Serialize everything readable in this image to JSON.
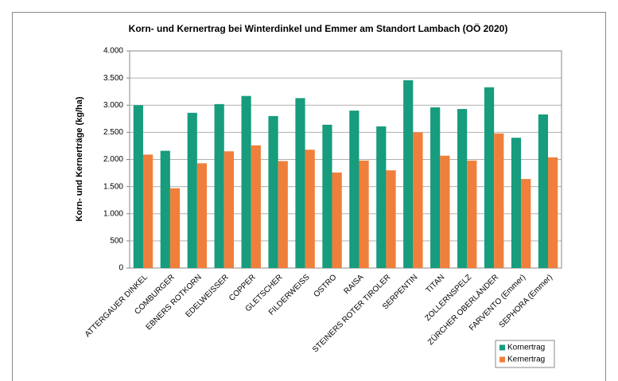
{
  "chart_data": {
    "type": "bar",
    "title": "Korn- und Kernertrag bei Winterdinkel und Emmer am Standort Lambach (OÖ 2020)",
    "y_label": "Korn- und Kernerträge (kg/ha)",
    "categories": [
      "ATTERGAUER DINKEL",
      "COMBURGER",
      "EBNERS ROTKORN",
      "EDELWEISSER",
      "COPPER",
      "GLETSCHER",
      "FILDERWEISS",
      "OSTRO",
      "RAISA",
      "STEINERS ROTER TIROLER",
      "SERPENTIN",
      "TITAN",
      "ZOLLERNSPELZ",
      "ZÜRCHER OBERLÄNDER",
      "FARVENTO (Emmer)",
      "SEPHORA (Emmer)"
    ],
    "series": [
      {
        "name": "Kornertrag",
        "color": "#179c7d",
        "values": [
          3000,
          2160,
          2860,
          3020,
          3170,
          2800,
          3130,
          2640,
          2900,
          2610,
          3460,
          2960,
          2930,
          3330,
          2400,
          2830
        ]
      },
      {
        "name": "Kernertrag",
        "color": "#f07f3c",
        "values": [
          2090,
          1470,
          1930,
          2150,
          2260,
          1970,
          2180,
          1760,
          1980,
          1800,
          2500,
          2070,
          1980,
          2480,
          1640,
          2040
        ]
      }
    ],
    "ylim": [
      0,
      4000
    ],
    "yticks": [
      0,
      500,
      {
        "value": 1000,
        "label": "1.000"
      },
      {
        "value": 1500,
        "label": "1.500"
      },
      {
        "value": 2000,
        "label": "2.000"
      },
      {
        "value": 2500,
        "label": "2.500"
      },
      {
        "value": 3000,
        "label": "3.000"
      },
      {
        "value": 3500,
        "label": "3.500"
      },
      {
        "value": 4000,
        "label": "4.000"
      }
    ],
    "grid": true,
    "legend": "lower-right"
  }
}
